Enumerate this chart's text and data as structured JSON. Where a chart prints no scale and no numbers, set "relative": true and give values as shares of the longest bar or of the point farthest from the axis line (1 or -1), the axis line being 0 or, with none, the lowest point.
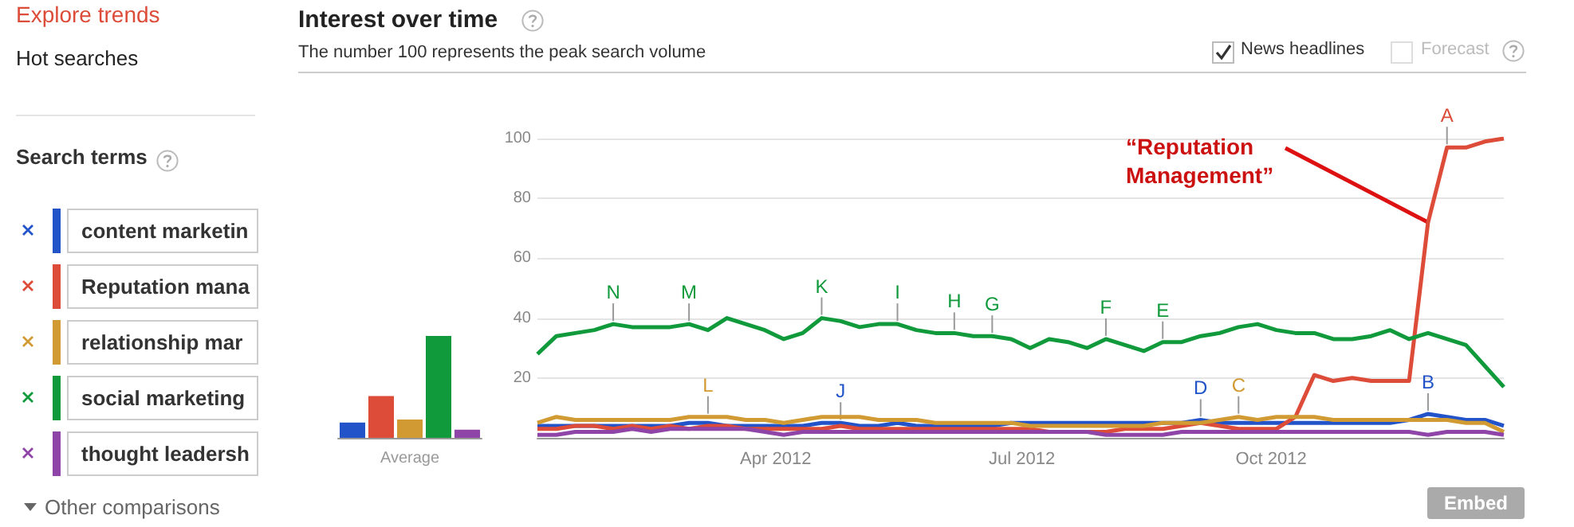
{
  "chart_data": [
    {
      "type": "bar",
      "categories": [
        null,
        null,
        "Average",
        null,
        null
      ],
      "relative": true,
      "values": [
        0.15,
        0.41,
        0.18,
        1,
        0.08
      ],
      "colors": [
        "#2253c8",
        "#dd4b39",
        "#d19a33",
        "#119a3b",
        "#8f44a8"
      ]
    },
    {
      "type": "line",
      "title": "Interest over time",
      "subtitle": "The number 100 represents the peak search volume",
      "x": [
        "2012-01-04",
        "2012-01-11",
        "2012-01-18",
        "2012-01-25",
        "2012-02-01",
        "2012-02-08",
        "2012-02-15",
        "2012-02-22",
        "2012-02-29",
        "2012-03-07",
        "2012-03-14",
        "2012-03-21",
        "2012-03-28",
        "2012-04-04",
        "2012-04-11",
        "2012-04-18",
        "2012-04-25",
        "2012-05-02",
        "2012-05-09",
        "2012-05-16",
        "2012-05-23",
        "2012-05-30",
        "2012-06-06",
        "2012-06-13",
        "2012-06-20",
        "2012-06-27",
        "2012-07-04",
        "2012-07-11",
        "2012-07-18",
        "2012-07-25",
        "2012-08-01",
        "2012-08-08",
        "2012-08-15",
        "2012-08-22",
        "2012-08-29",
        "2012-09-05",
        "2012-09-12",
        "2012-09-19",
        "2012-09-26",
        "2012-10-03",
        "2012-10-10",
        "2012-10-17",
        "2012-10-24",
        "2012-10-31",
        "2012-11-07",
        "2012-11-14",
        "2012-11-21",
        "2012-11-28",
        "2012-12-05",
        "2012-12-12",
        "2012-12-19",
        "2012-12-26"
      ],
      "series": [
        {
          "name": "content marketin",
          "color": "#2253c8",
          "values": [
            4,
            4,
            4,
            4,
            4,
            4,
            4,
            4,
            5,
            5,
            4,
            4,
            4,
            4,
            4,
            5,
            5,
            4,
            4,
            5,
            4,
            4,
            4,
            4,
            4,
            5,
            5,
            5,
            5,
            5,
            5,
            5,
            5,
            5,
            5,
            6,
            5,
            5,
            5,
            5,
            5,
            5,
            5,
            5,
            5,
            5,
            6,
            8,
            7,
            6,
            6,
            4
          ]
        },
        {
          "name": "Reputation mana",
          "color": "#dd4b39",
          "values": [
            3,
            3,
            4,
            4,
            3,
            4,
            3,
            4,
            3,
            4,
            4,
            3,
            3,
            3,
            3,
            3,
            4,
            3,
            3,
            3,
            3,
            3,
            3,
            3,
            3,
            3,
            3,
            2,
            2,
            2,
            2,
            3,
            3,
            3,
            4,
            5,
            4,
            3,
            3,
            3,
            7,
            21,
            19,
            20,
            19,
            19,
            19,
            72,
            97,
            97,
            99,
            100
          ]
        },
        {
          "name": "relationship mar",
          "color": "#d19a33",
          "values": [
            5,
            7,
            6,
            6,
            6,
            6,
            6,
            6,
            7,
            7,
            7,
            6,
            6,
            5,
            6,
            7,
            7,
            7,
            6,
            6,
            6,
            5,
            5,
            5,
            5,
            5,
            4,
            4,
            4,
            4,
            4,
            4,
            4,
            5,
            5,
            5,
            6,
            7,
            6,
            7,
            7,
            7,
            6,
            6,
            6,
            6,
            6,
            6,
            6,
            5,
            5,
            2
          ]
        },
        {
          "name": "social marketing",
          "color": "#119a3b",
          "values": [
            28,
            34,
            35,
            36,
            38,
            37,
            37,
            37,
            38,
            36,
            40,
            38,
            36,
            33,
            35,
            40,
            39,
            37,
            38,
            38,
            36,
            35,
            35,
            34,
            34,
            33,
            30,
            33,
            32,
            30,
            33,
            31,
            29,
            32,
            32,
            34,
            35,
            37,
            38,
            36,
            35,
            35,
            33,
            33,
            34,
            36,
            33,
            35,
            33,
            31,
            24,
            17
          ]
        },
        {
          "name": "thought leadersh",
          "color": "#8f44a8",
          "values": [
            1,
            1,
            2,
            2,
            2,
            3,
            2,
            3,
            3,
            3,
            3,
            3,
            2,
            1,
            2,
            2,
            2,
            2,
            2,
            2,
            2,
            2,
            2,
            2,
            2,
            2,
            2,
            2,
            2,
            2,
            1,
            1,
            1,
            1,
            2,
            2,
            2,
            2,
            2,
            2,
            2,
            2,
            2,
            2,
            2,
            2,
            2,
            1,
            2,
            2,
            2,
            1
          ]
        }
      ],
      "xlim": [
        "2012-01-04",
        "2012-12-26"
      ],
      "xticks": [
        {
          "value": "2012-04-01",
          "label": "Apr 2012"
        },
        {
          "value": "2012-07-01",
          "label": "Jul 2012"
        },
        {
          "value": "2012-10-01",
          "label": "Oct 2012"
        }
      ],
      "ylim": [
        0,
        100
      ],
      "yticks": [
        {
          "value": 0,
          "label": null
        },
        20,
        40,
        60,
        80,
        100
      ],
      "grid": "y",
      "legend": "left",
      "annotations": [
        "Explore trends",
        "Hot searches",
        "Search terms",
        "Other comparisons",
        "News headlines",
        "Forecast",
        "Embed",
        {
          "text": "“Reputation Management”",
          "x": "2012-11-28",
          "y": 72
        },
        {
          "text": "N",
          "x": "2012-02-01",
          "y": 38
        },
        {
          "text": "M",
          "x": "2012-02-29",
          "y": 38
        },
        {
          "text": "L",
          "x": "2012-03-07",
          "y": 7
        },
        {
          "text": "K",
          "x": "2012-04-18",
          "y": 40
        },
        {
          "text": "J",
          "x": "2012-04-25",
          "y": 5
        },
        {
          "text": "I",
          "x": "2012-05-16",
          "y": 38
        },
        {
          "text": "H",
          "x": "2012-06-06",
          "y": 35
        },
        {
          "text": "G",
          "x": "2012-06-20",
          "y": 34
        },
        {
          "text": "F",
          "x": "2012-08-01",
          "y": 33
        },
        {
          "text": "E",
          "x": "2012-08-22",
          "y": 32
        },
        {
          "text": "D",
          "x": "2012-09-05",
          "y": 6
        },
        {
          "text": "C",
          "x": "2012-09-19",
          "y": 7
        },
        {
          "text": "B",
          "x": "2012-11-28",
          "y": 8
        },
        {
          "text": "A",
          "x": "2012-12-05",
          "y": 97
        }
      ]
    }
  ]
}
